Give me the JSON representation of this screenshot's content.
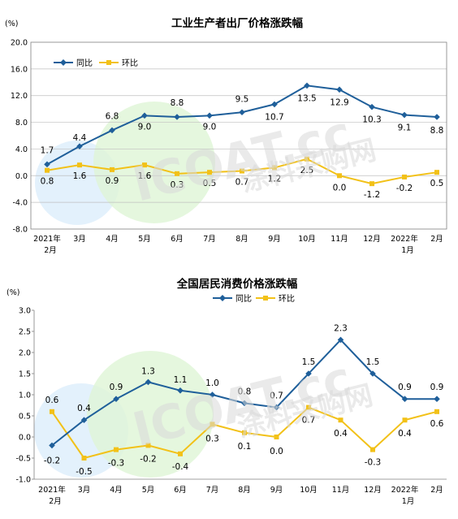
{
  "chart_data": [
    {
      "type": "line",
      "title": "工业生产者出厂价格涨跌幅",
      "unit": "(%)",
      "categories": [
        [
          "2021年",
          "2月"
        ],
        [
          "3月"
        ],
        [
          "4月"
        ],
        [
          "5月"
        ],
        [
          "6月"
        ],
        [
          "7月"
        ],
        [
          "8月"
        ],
        [
          "9月"
        ],
        [
          "10月"
        ],
        [
          "11月"
        ],
        [
          "12月"
        ],
        [
          "2022年",
          "1月"
        ],
        [
          "2月"
        ]
      ],
      "ylim": [
        -8.0,
        20.0
      ],
      "yticks": [
        "20.0",
        "16.0",
        "12.0",
        "8.0",
        "4.0",
        "0.0",
        "-4.0",
        "-8.0"
      ],
      "grid": true,
      "legend_position": "top-left",
      "series": [
        {
          "name": "同比",
          "color": "#1f5f9a",
          "values": [
            1.7,
            4.4,
            6.8,
            9.0,
            8.8,
            9.0,
            9.5,
            10.7,
            13.5,
            12.9,
            10.3,
            9.1,
            8.8
          ],
          "labels": [
            "1.7",
            "4.4",
            "6.8",
            "9.0",
            "8.8",
            "9.0",
            "9.5",
            "10.7",
            "13.5",
            "12.9",
            "10.3",
            "9.1",
            "8.8"
          ]
        },
        {
          "name": "环比",
          "color": "#f2c118",
          "values": [
            0.8,
            1.6,
            0.9,
            1.6,
            0.3,
            0.5,
            0.7,
            1.2,
            2.5,
            0.0,
            -1.2,
            -0.2,
            0.5
          ],
          "labels": [
            "0.8",
            "1.6",
            "0.9",
            "1.6",
            "0.3",
            "0.5",
            "0.7",
            "1.2",
            "2.5",
            "0.0",
            "-1.2",
            "-0.2",
            "0.5"
          ]
        }
      ]
    },
    {
      "type": "line",
      "title": "全国居民消费价格涨跌幅",
      "unit": "(%)",
      "categories": [
        [
          "2021年",
          "2月"
        ],
        [
          "3月"
        ],
        [
          "4月"
        ],
        [
          "5月"
        ],
        [
          "6月"
        ],
        [
          "7月"
        ],
        [
          "8月"
        ],
        [
          "9月"
        ],
        [
          "10月"
        ],
        [
          "11月"
        ],
        [
          "12月"
        ],
        [
          "2022年",
          "1月"
        ],
        [
          "2月"
        ]
      ],
      "ylim": [
        -1.0,
        3.0
      ],
      "yticks": [
        "3.0",
        "2.5",
        "2.0",
        "1.5",
        "1.0",
        "0.5",
        "0.0",
        "-0.5",
        "-1.0"
      ],
      "grid": false,
      "legend_position": "top-center",
      "series": [
        {
          "name": "同比",
          "color": "#1f5f9a",
          "values": [
            -0.2,
            0.4,
            0.9,
            1.3,
            1.1,
            1.0,
            0.8,
            0.7,
            1.5,
            2.3,
            1.5,
            0.9,
            0.9
          ],
          "labels": [
            "-0.2",
            "0.4",
            "0.9",
            "1.3",
            "1.1",
            "1.0",
            "0.8",
            "0.7",
            "1.5",
            "2.3",
            "1.5",
            "0.9",
            "0.9"
          ]
        },
        {
          "name": "环比",
          "color": "#f2c118",
          "values": [
            0.6,
            -0.5,
            -0.3,
            -0.2,
            -0.4,
            0.3,
            0.1,
            0.0,
            0.7,
            0.4,
            -0.3,
            0.4,
            0.6
          ],
          "labels": [
            "0.6",
            "-0.5",
            "-0.3",
            "-0.2",
            "-0.4",
            "0.3",
            "0.1",
            "0.0",
            "0.7",
            "0.4",
            "-0.3",
            "0.4",
            "0.6"
          ]
        }
      ]
    }
  ],
  "watermark": {
    "latin": "ICOAT.cc",
    "chinese": "涂料采购网"
  }
}
